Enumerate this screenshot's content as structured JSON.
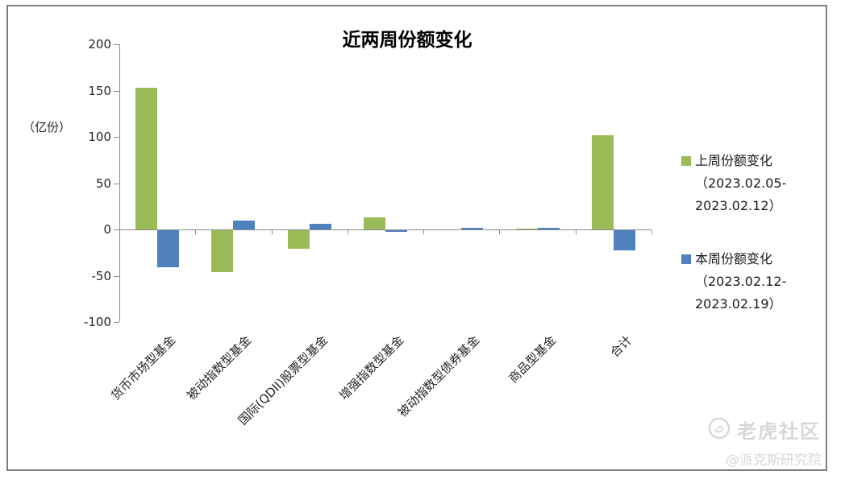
{
  "title": "近两周份额变化",
  "watermark": {
    "brand": "老虎社区",
    "handle": "@派克斯研究院"
  },
  "colors": {
    "last_week_green": "#9BBB59",
    "this_week_blue": "#4F81BD",
    "axis_gray": "#8c8c8c",
    "frame_gray": "#7f7f7f",
    "watermark_gray": "#d8d8d8"
  },
  "chart_data": {
    "type": "bar",
    "title": "近两周份额变化",
    "ylabel": "（亿份）",
    "ylim": [
      -100,
      200
    ],
    "ytick_step": 50,
    "grid": false,
    "legend_position": "right",
    "categories": [
      "货币市场型基金",
      "被动指数型基金",
      "国际(QDII)股票型基金",
      "增强指数型基金",
      "被动指数型债券基金",
      "商品型基金",
      "合计"
    ],
    "series": [
      {
        "name": "上周份额变化（2023.02.05-2023.02.12）",
        "legend_lines": [
          "上周份额变化",
          "（2023.02.05-",
          "2023.02.12）"
        ],
        "color": "#9BBB59",
        "values": [
          153,
          -45,
          -20,
          13,
          0,
          1,
          102
        ]
      },
      {
        "name": "本周份额变化（2023.02.12-2023.02.19）",
        "legend_lines": [
          "本周份额变化",
          "（2023.02.12-",
          "2023.02.19）"
        ],
        "color": "#4F81BD",
        "values": [
          -40,
          10,
          6,
          -2,
          2,
          2,
          -22
        ]
      }
    ]
  }
}
